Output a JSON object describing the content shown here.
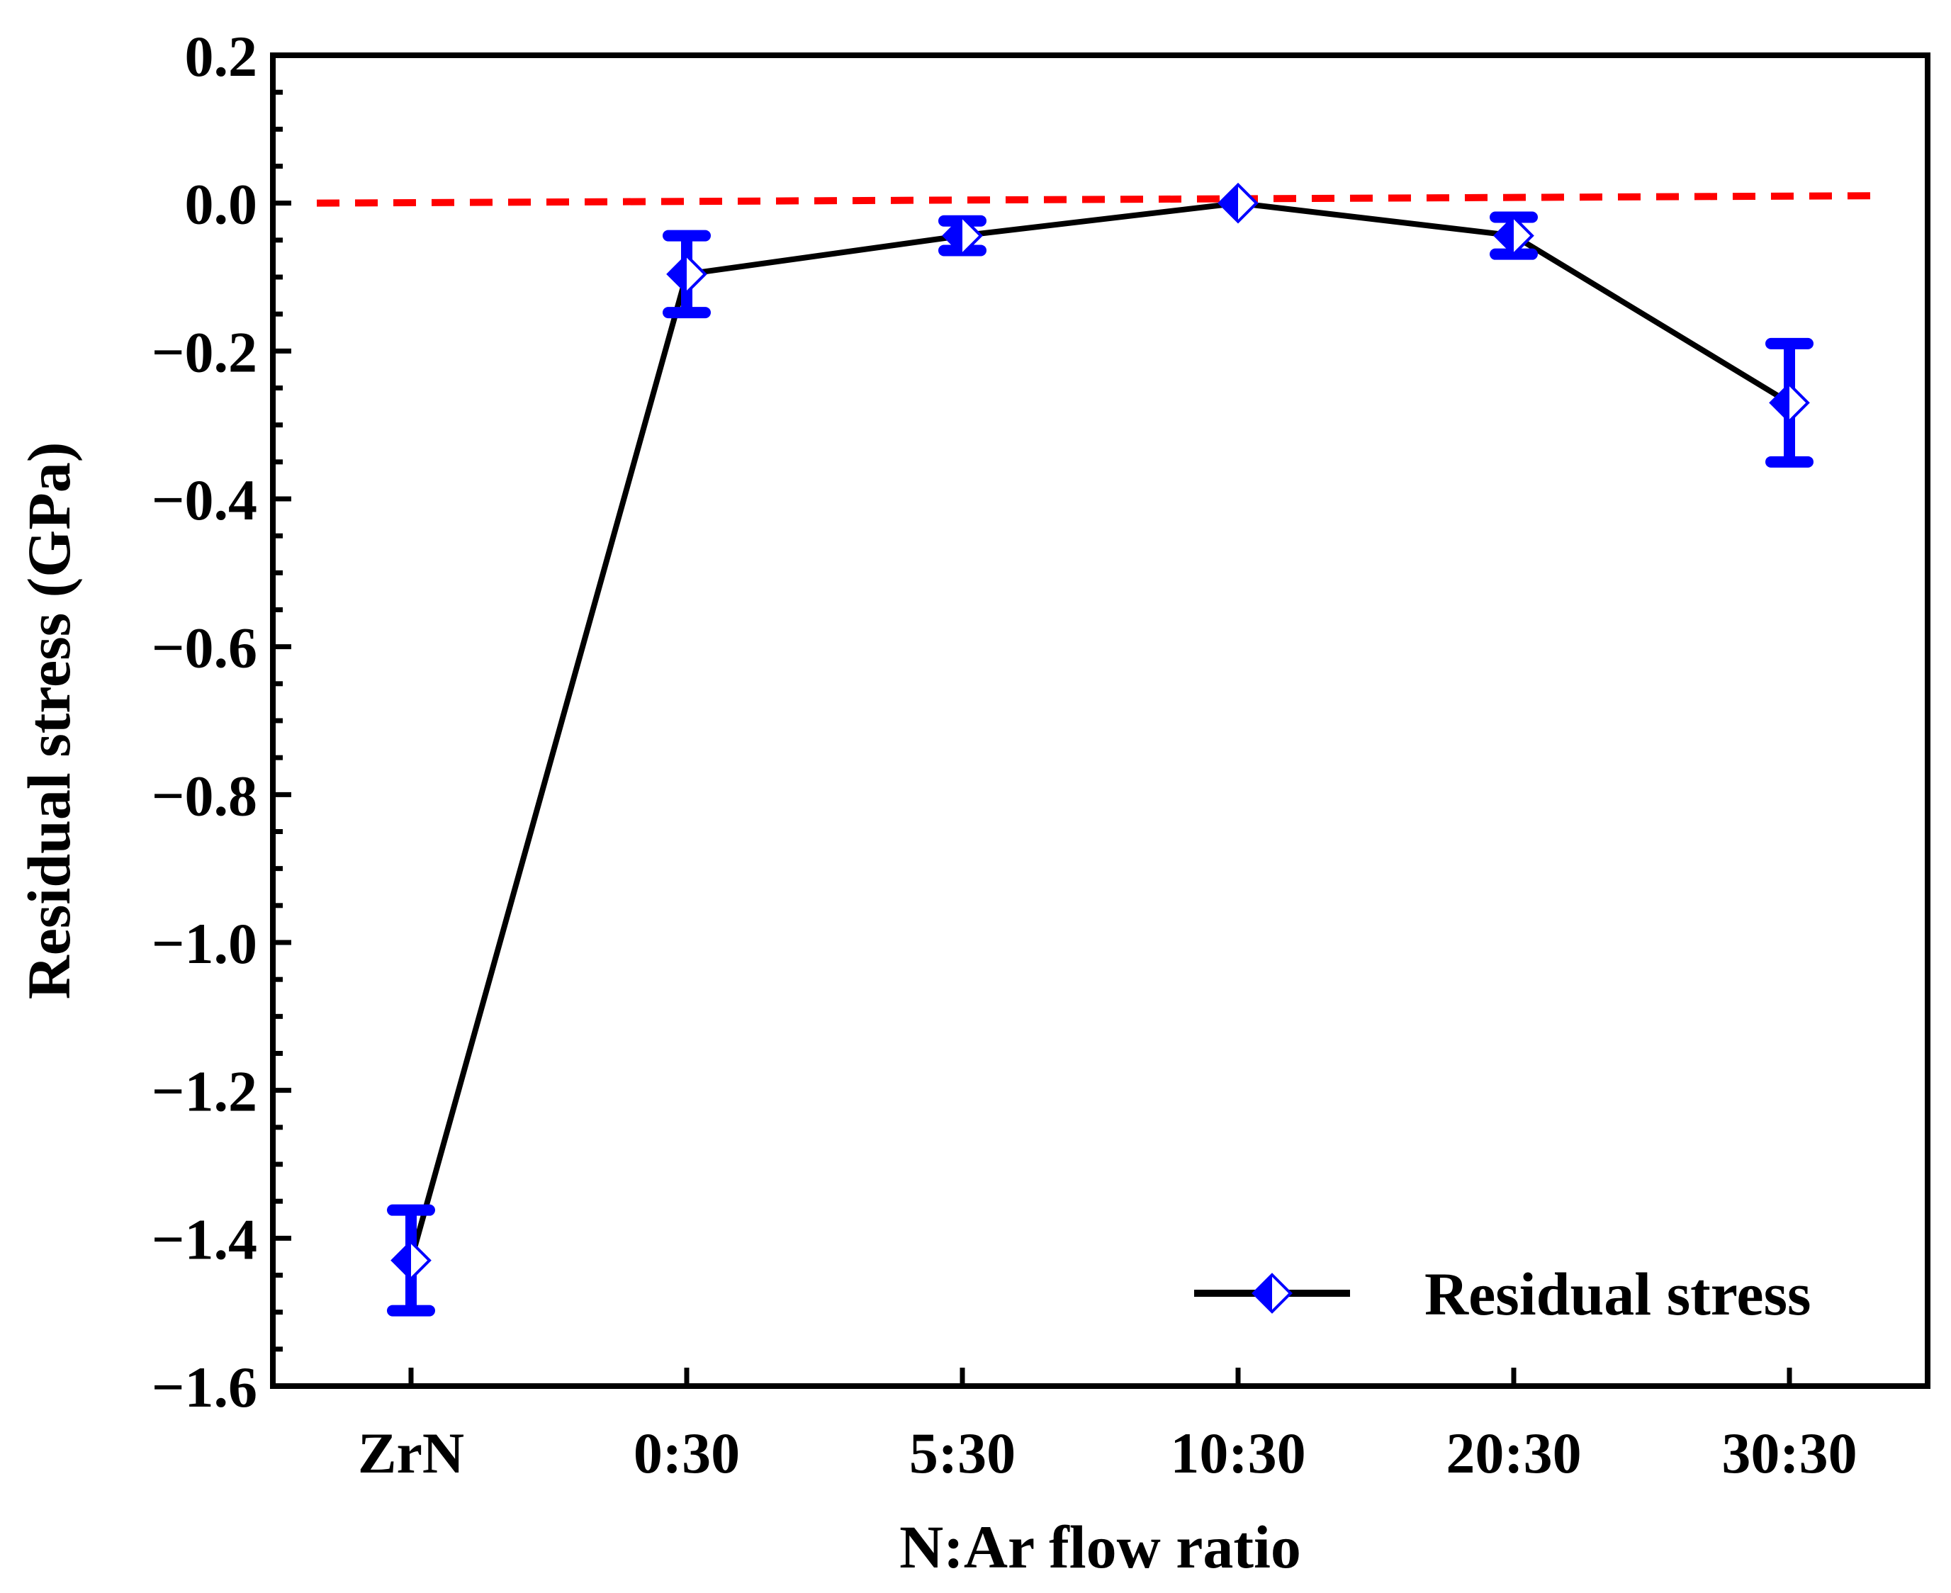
{
  "chart_data": {
    "type": "line",
    "title": "",
    "xlabel": "N:Ar flow ratio",
    "ylabel": "Residual stress (GPa)",
    "categories": [
      "ZrN",
      "0:30",
      "5:30",
      "10:30",
      "20:30",
      "30:30"
    ],
    "ylim": [
      -1.6,
      0.2
    ],
    "yticks": [
      0.2,
      0.0,
      -0.2,
      -0.4,
      -0.6,
      -0.8,
      -1.0,
      -1.2,
      -1.4,
      -1.6
    ],
    "ytick_labels": [
      "0.2",
      "0.0",
      "−0.2",
      "−0.4",
      "−0.6",
      "−0.8",
      "−1.0",
      "−1.2",
      "−1.4",
      "−1.6"
    ],
    "grid": false,
    "legend_position": "bottom-right",
    "series": [
      {
        "name": "Residual stress",
        "values": [
          -1.43,
          -0.096,
          -0.044,
          0.0,
          -0.044,
          -0.27
        ],
        "error": [
          0.068,
          0.052,
          0.02,
          0.0,
          0.025,
          0.08
        ],
        "color": "#000000",
        "marker_color": "#0000ff",
        "errorbar_color": "#0000ff"
      }
    ],
    "reference_line": {
      "y_start": 0.0,
      "y_end": 0.01,
      "color": "#ff0000",
      "style": "dashed"
    }
  }
}
